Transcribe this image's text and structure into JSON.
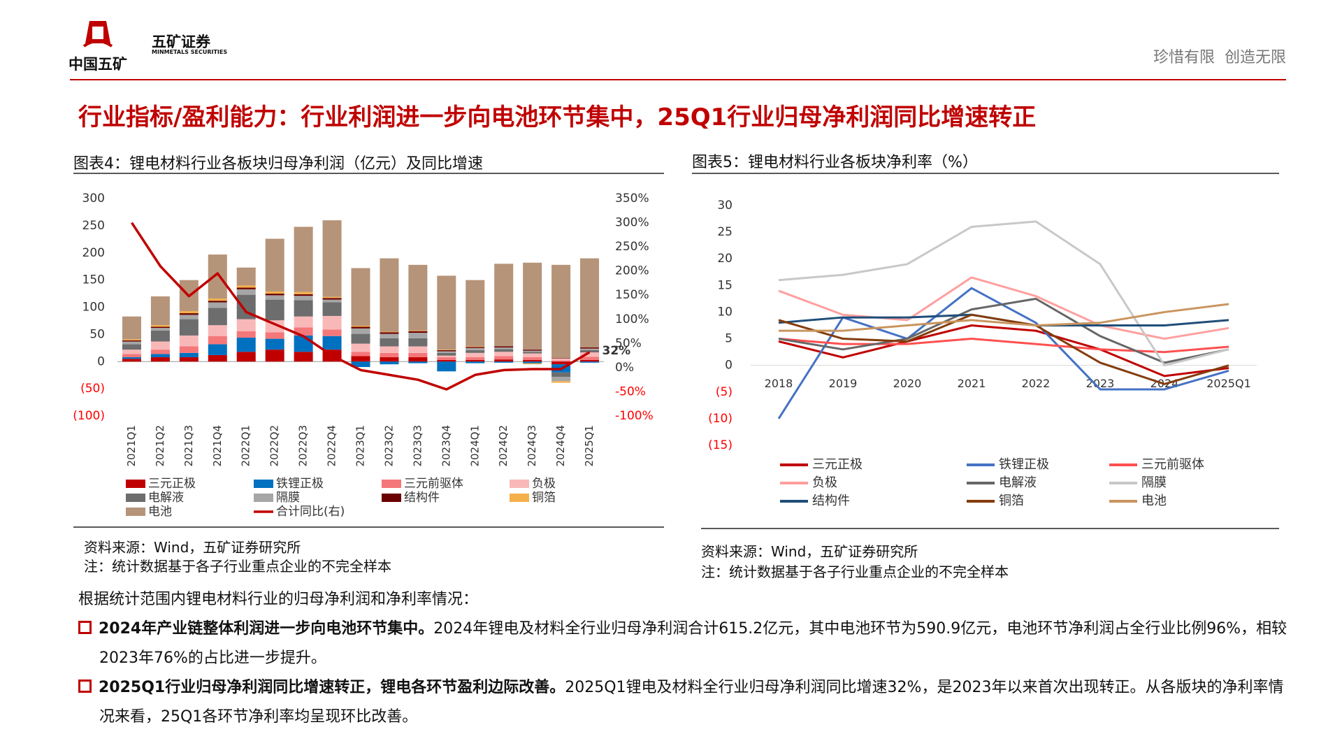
{
  "header": {
    "logo_text": "中国五矿",
    "brand": "五矿证券",
    "brand_en": "MINMETALS SECURITIES",
    "slogan": "珍惜有限  创造无限"
  },
  "title": "行业指标/盈利能力：行业利润进一步向电池环节集中，25Q1行业归母净利润同比增速转正",
  "chart_data": [
    {
      "type": "bar",
      "stacked": true,
      "title": "图表4：锂电材料行业各板块归母净利润（亿元）及同比增速",
      "categories": [
        "2021Q1",
        "2021Q2",
        "2021Q3",
        "2021Q4",
        "2022Q1",
        "2022Q2",
        "2022Q3",
        "2022Q4",
        "2023Q1",
        "2023Q2",
        "2023Q3",
        "2023Q4",
        "2024Q1",
        "2024Q2",
        "2024Q3",
        "2024Q4",
        "2025Q1"
      ],
      "series": [
        {
          "name": "三元正极",
          "color": "#c00000",
          "values": [
            5,
            8,
            8,
            12,
            18,
            22,
            18,
            22,
            10,
            8,
            8,
            3,
            3,
            4,
            3,
            -5,
            3
          ]
        },
        {
          "name": "铁锂正极",
          "color": "#0070c0",
          "values": [
            3,
            6,
            8,
            20,
            26,
            20,
            30,
            25,
            -10,
            -5,
            -3,
            -18,
            -3,
            -2,
            -3,
            -15,
            -2
          ]
        },
        {
          "name": "三元前驱体",
          "color": "#f4777a",
          "values": [
            6,
            8,
            12,
            15,
            12,
            12,
            15,
            12,
            8,
            8,
            8,
            5,
            5,
            6,
            5,
            2,
            6
          ]
        },
        {
          "name": "负极",
          "color": "#f9b8b8",
          "values": [
            8,
            15,
            20,
            20,
            22,
            22,
            20,
            25,
            15,
            12,
            12,
            3,
            8,
            8,
            7,
            4,
            8
          ]
        },
        {
          "name": "电解液",
          "color": "#6d6d6d",
          "values": [
            10,
            20,
            30,
            32,
            45,
            38,
            30,
            25,
            18,
            15,
            15,
            5,
            5,
            5,
            3,
            -8,
            4
          ]
        },
        {
          "name": "隔膜",
          "color": "#a6a6a6",
          "values": [
            5,
            5,
            8,
            10,
            10,
            8,
            8,
            5,
            10,
            8,
            10,
            3,
            4,
            3,
            2,
            -8,
            3
          ]
        },
        {
          "name": "结构件",
          "color": "#6b0000",
          "values": [
            2,
            2,
            3,
            3,
            3,
            3,
            3,
            3,
            3,
            3,
            3,
            2,
            2,
            2,
            2,
            1,
            2
          ]
        },
        {
          "name": "铜箔",
          "color": "#f4b04b",
          "values": [
            2,
            3,
            4,
            4,
            4,
            4,
            4,
            2,
            2,
            1,
            1,
            1,
            1,
            0,
            -2,
            -3,
            0
          ]
        },
        {
          "name": "电池",
          "color": "#b69479",
          "values": [
            42,
            53,
            57,
            81,
            33,
            97,
            120,
            141,
            106,
            135,
            121,
            136,
            122,
            152,
            160,
            171,
            164
          ]
        },
        {
          "name": "合计同比(右)",
          "type": "line",
          "axis": "y2",
          "color": "#c00000",
          "values": [
            300,
            210,
            148,
            195,
            115,
            90,
            65,
            25,
            -5,
            -15,
            -25,
            -45,
            -15,
            -5,
            -3,
            -3,
            32
          ]
        }
      ],
      "annotation": "32%",
      "ylim": [
        -100,
        300
      ],
      "yticks": [
        {
          "value": -100,
          "label": "(100)"
        },
        {
          "value": -50,
          "label": "(50)"
        },
        0,
        50,
        100,
        150,
        200,
        250,
        300
      ],
      "y2lim": [
        -100,
        350
      ],
      "y2ticks": [
        {
          "value": -100,
          "label": "-100%"
        },
        {
          "value": -50,
          "label": "-50%"
        },
        {
          "value": 0,
          "label": "0%"
        },
        {
          "value": 50,
          "label": "50%"
        },
        {
          "value": 100,
          "label": "100%"
        },
        {
          "value": 150,
          "label": "150%"
        },
        {
          "value": 200,
          "label": "200%"
        },
        {
          "value": 250,
          "label": "250%"
        },
        {
          "value": 300,
          "label": "300%"
        },
        {
          "value": 350,
          "label": "350%"
        }
      ],
      "negative_label_color": "#ff0000"
    },
    {
      "type": "line",
      "title": "图表5：锂电材料行业各板块净利率（%）",
      "categories": [
        "2018",
        "2019",
        "2020",
        "2021",
        "2022",
        "2023",
        "2024",
        "2025Q1"
      ],
      "series": [
        {
          "name": "三元正极",
          "color": "#c00000",
          "values": [
            4.5,
            1.5,
            4.5,
            7.5,
            6.5,
            3,
            -2,
            -0.5
          ]
        },
        {
          "name": "铁锂正极",
          "color": "#4472c4",
          "values": [
            -10,
            9,
            5,
            14.5,
            8,
            -4.5,
            -4.5,
            -1
          ]
        },
        {
          "name": "三元前驱体",
          "color": "#ff5050",
          "values": [
            5,
            4,
            4,
            5,
            4,
            3,
            2.5,
            3.5
          ]
        },
        {
          "name": "负极",
          "color": "#ff9f9f",
          "values": [
            14,
            9.5,
            8.5,
            16.5,
            13,
            7.5,
            5,
            7
          ]
        },
        {
          "name": "电解液",
          "color": "#666666",
          "values": [
            5,
            3,
            5,
            10.5,
            12.5,
            5.5,
            0.5,
            3
          ]
        },
        {
          "name": "隔膜",
          "color": "#c8c8c8",
          "values": [
            16,
            17,
            19,
            26,
            27,
            19,
            0,
            3
          ]
        },
        {
          "name": "结构件",
          "color": "#1f4e79",
          "values": [
            8,
            9,
            9,
            9.5,
            7.5,
            7.5,
            7.5,
            8.5
          ]
        },
        {
          "name": "铜箔",
          "color": "#843c0c",
          "values": [
            8.5,
            5,
            4.5,
            9.5,
            7.5,
            0.5,
            -3.5,
            0
          ]
        },
        {
          "name": "电池",
          "color": "#c9955e",
          "values": [
            6.5,
            6.5,
            7.5,
            8.5,
            7.5,
            8,
            10,
            11.5
          ]
        }
      ],
      "ylim": [
        -15,
        30
      ],
      "yticks": [
        {
          "value": -15,
          "label": "(15)"
        },
        {
          "value": -10,
          "label": "(10)"
        },
        {
          "value": -5,
          "label": "(5)"
        },
        0,
        5,
        10,
        15,
        20,
        25,
        30
      ],
      "negative_label_color": "#ff0000"
    }
  ],
  "notes": [
    [
      "资料来源：Wind，五矿证券研究所",
      "注：统计数据基于各子行业重点企业的不完全样本"
    ],
    [
      "资料来源：Wind，五矿证券研究所",
      "注：统计数据基于各子行业重点企业的不完全样本"
    ]
  ],
  "body": {
    "intro": "根据统计范围内锂电材料行业的归母净利润和净利率情况：",
    "bullets": [
      {
        "bold": "2024年产业链整体利润进一步向电池环节集中。",
        "text": "2024年锂电及材料全行业归母净利润合计615.2亿元，其中电池环节为590.9亿元，电池环节净利润占全行业比例96%，相较2023年76%的占比进一步提升。"
      },
      {
        "bold": "2025Q1行业归母净利润同比增速转正，锂电各环节盈利边际改善。",
        "text": "2025Q1锂电及材料全行业归母净利润同比增速32%，是2023年以来首次出现转正。从各版块的净利率情况来看，25Q1各环节净利率均呈现环比改善。"
      }
    ]
  }
}
